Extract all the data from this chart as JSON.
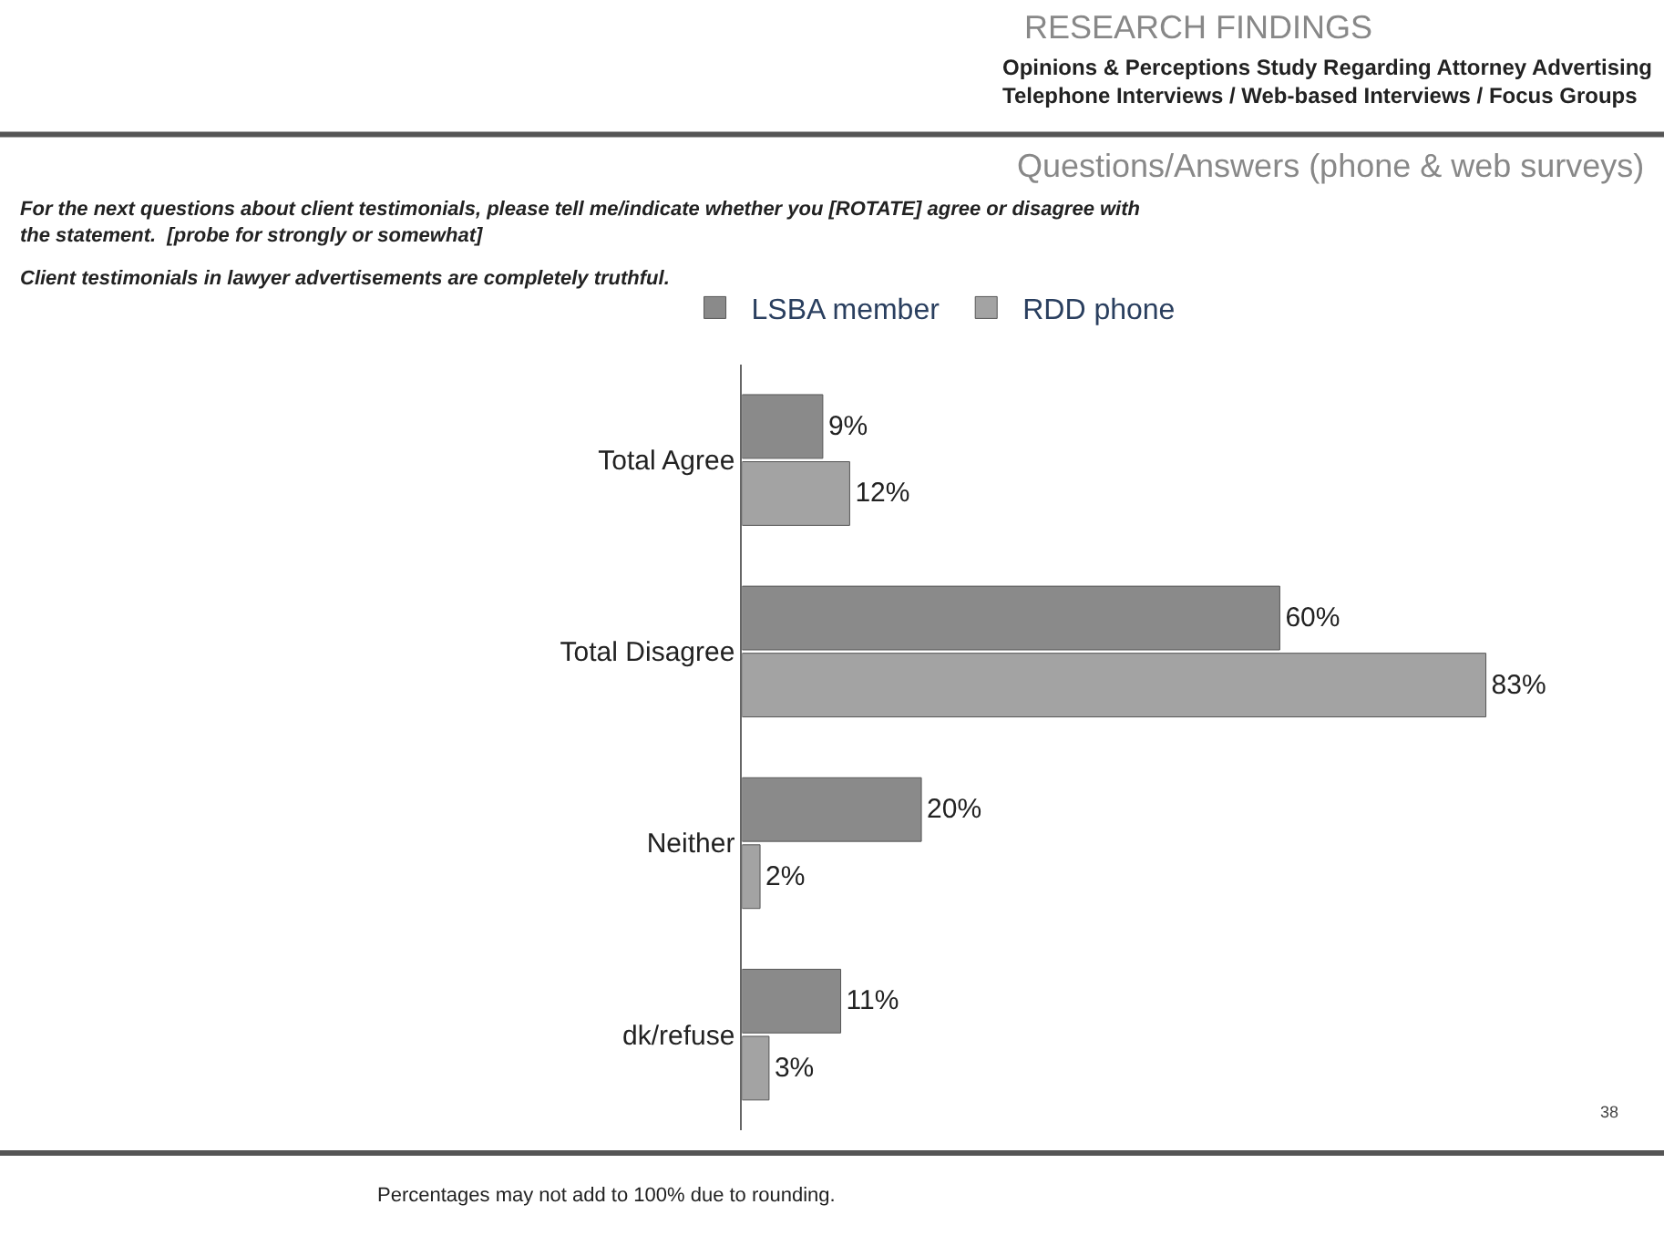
{
  "chart_data": {
    "type": "bar",
    "orientation": "horizontal",
    "title": "RESEARCH FINDINGS",
    "subtitle": "Opinions & Perceptions Study Regarding Attorney Advertising\nTelephone Interviews / Web-based Interviews / Focus Groups",
    "annotations": [
      "Questions/Answers (phone & web surveys)",
      "For the next questions about client testimonials, please tell me/indicate whether you [ROTATE] agree or disagree with the statement.  [probe for strongly or somewhat]",
      "Client testimonials in lawyer advertisements are completely truthful.",
      "38",
      "Percentages may not add to 100% due to rounding."
    ],
    "categories": [
      "Total Agree",
      "Total Disagree",
      "Neither",
      "dk/refuse"
    ],
    "series": [
      {
        "name": "LSBA member",
        "color": "#8a8a8a",
        "values": [
          9,
          60,
          20,
          11
        ],
        "value_labels": [
          "9%",
          "60%",
          "20%",
          "11%"
        ]
      },
      {
        "name": "RDD phone",
        "color": "#a3a3a3",
        "values": [
          12,
          83,
          2,
          3
        ],
        "value_labels": [
          "12%",
          "83%",
          "2%",
          "3%"
        ]
      }
    ],
    "legend": "top"
  }
}
